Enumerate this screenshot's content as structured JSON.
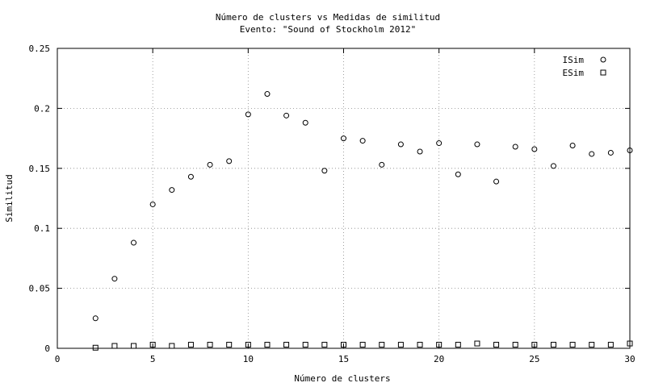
{
  "chart_data": {
    "type": "scatter",
    "title": "Número de clusters vs Medidas de similitud",
    "subtitle": "Evento: \"Sound of Stockholm 2012\"",
    "xlabel": "Número de clusters",
    "ylabel": "Similitud",
    "xlim": [
      0,
      30
    ],
    "ylim": [
      0,
      0.25
    ],
    "xticks": [
      0,
      5,
      10,
      15,
      20,
      25,
      30
    ],
    "yticks": [
      0,
      0.05,
      0.1,
      0.15,
      0.2,
      0.25
    ],
    "xtick_labels": [
      "0",
      "5",
      "10",
      "15",
      "20",
      "25",
      "30"
    ],
    "ytick_labels": [
      "0",
      "0.05",
      "0.1",
      "0.15",
      "0.2",
      "0.25"
    ],
    "grid": true,
    "legend_position": "top-right",
    "series": [
      {
        "name": "ISim",
        "marker": "circle",
        "x": [
          2,
          3,
          4,
          5,
          6,
          7,
          8,
          9,
          10,
          11,
          12,
          13,
          14,
          15,
          16,
          17,
          18,
          19,
          20,
          21,
          22,
          23,
          24,
          25,
          26,
          27,
          28,
          29,
          30
        ],
        "y": [
          0.025,
          0.058,
          0.088,
          0.12,
          0.132,
          0.143,
          0.153,
          0.156,
          0.195,
          0.212,
          0.194,
          0.188,
          0.148,
          0.175,
          0.173,
          0.153,
          0.17,
          0.164,
          0.171,
          0.145,
          0.17,
          0.139,
          0.168,
          0.166,
          0.152,
          0.169,
          0.162,
          0.163,
          0.165
        ]
      },
      {
        "name": "ESim",
        "marker": "square",
        "x": [
          2,
          3,
          4,
          5,
          6,
          7,
          8,
          9,
          10,
          11,
          12,
          13,
          14,
          15,
          16,
          17,
          18,
          19,
          20,
          21,
          22,
          23,
          24,
          25,
          26,
          27,
          28,
          29,
          30
        ],
        "y": [
          0.0005,
          0.002,
          0.002,
          0.003,
          0.002,
          0.003,
          0.003,
          0.003,
          0.003,
          0.003,
          0.003,
          0.003,
          0.003,
          0.003,
          0.003,
          0.003,
          0.003,
          0.003,
          0.003,
          0.003,
          0.004,
          0.003,
          0.003,
          0.003,
          0.003,
          0.003,
          0.003,
          0.003,
          0.004
        ]
      }
    ]
  }
}
